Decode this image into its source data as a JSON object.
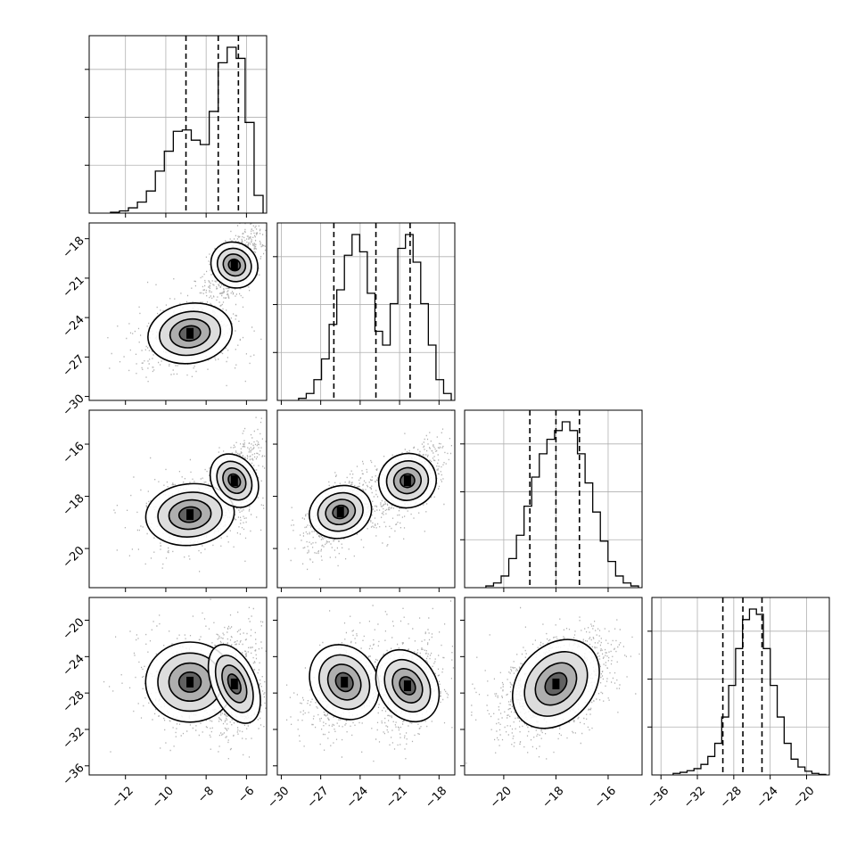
{
  "chart_data": [
    {
      "type": "histogram",
      "panel": "1D marginal, parameter 1",
      "x_ticks": [
        -12,
        -10,
        -8,
        -6
      ],
      "xlim": [
        -13.8,
        -5.0
      ],
      "bins_y": [
        0.2,
        0.5,
        1.2,
        2.5,
        5,
        9.5,
        14,
        18.5,
        18.8,
        16.5,
        15.5,
        23,
        34,
        37.5,
        35,
        20.5,
        4
      ],
      "quantiles": [
        -9.0,
        -7.4,
        -6.4
      ],
      "grid": true
    },
    {
      "type": "histogram",
      "panel": "1D marginal, parameter 2",
      "x_ticks": [
        -30,
        -27,
        -24,
        -21,
        -18
      ],
      "xlim": [
        -30.3,
        -16.8
      ],
      "bins_y": [
        0.3,
        1,
        3,
        6,
        11,
        16,
        21,
        24,
        21.5,
        15.5,
        10,
        8,
        14,
        22,
        24,
        20,
        14,
        8,
        3,
        1
      ],
      "quantiles": [
        -26.0,
        -22.8,
        -20.2
      ],
      "grid": true
    },
    {
      "type": "histogram",
      "panel": "1D marginal, parameter 3",
      "x_ticks": [
        -20,
        -18,
        -16
      ],
      "xlim": [
        -21.5,
        -14.7
      ],
      "bins_y": [
        0.3,
        0.8,
        2,
        5,
        9,
        14,
        19,
        23,
        25.5,
        27,
        28.5,
        27,
        23,
        18,
        13,
        8,
        4.5,
        2,
        0.8,
        0.3
      ],
      "quantiles": [
        -19.0,
        -18.0,
        -17.1
      ],
      "grid": true
    },
    {
      "type": "histogram",
      "panel": "1D marginal, parameter 4",
      "x_ticks": [
        -36,
        -32,
        -28,
        -24,
        -20
      ],
      "xlim": [
        -37,
        -17.5
      ],
      "bins_y": [
        0.3,
        0.5,
        0.8,
        1.2,
        2,
        3.5,
        6,
        11,
        17,
        24,
        29.5,
        31.5,
        30.5,
        24,
        17,
        11,
        6,
        3,
        1.5,
        0.7,
        0.3,
        0.1
      ],
      "quantiles": [
        -29.2,
        -27.0,
        -24.9
      ],
      "grid": true
    },
    {
      "type": "heatmap",
      "panel": "2D parameter 1 vs parameter 2",
      "xlim": [
        -13.8,
        -5.0
      ],
      "ylim": [
        -30.3,
        -16.8
      ],
      "x_ticks": [
        -12,
        -10,
        -8,
        -6
      ],
      "y_ticks": [
        -18,
        -21,
        -24,
        -27,
        -30
      ],
      "modes": [
        {
          "x": -8.8,
          "y": -25.2,
          "sx": 1.05,
          "sy": 1.15,
          "rho": 0.15,
          "w": 0.42
        },
        {
          "x": -6.6,
          "y": -20.0,
          "sx": 0.55,
          "sy": 1.15,
          "rho": 0.6,
          "w": 0.58
        }
      ]
    },
    {
      "type": "heatmap",
      "panel": "2D parameter 1 vs parameter 3",
      "xlim": [
        -13.8,
        -5.0
      ],
      "ylim": [
        -21.5,
        -14.7
      ],
      "x_ticks": [
        -12,
        -10,
        -8,
        -6
      ],
      "y_ticks": [
        -16,
        -18,
        -20
      ],
      "modes": [
        {
          "x": -8.8,
          "y": -18.7,
          "sx": 1.1,
          "sy": 0.6,
          "rho": 0.2,
          "w": 0.42
        },
        {
          "x": -6.6,
          "y": -17.4,
          "sx": 0.55,
          "sy": 0.65,
          "rho": 0.55,
          "w": 0.58
        }
      ]
    },
    {
      "type": "heatmap",
      "panel": "2D parameter 2 vs parameter 3",
      "xlim": [
        -30.3,
        -16.8
      ],
      "ylim": [
        -21.5,
        -14.7
      ],
      "x_ticks": [
        -30,
        -27,
        -24,
        -21,
        -18
      ],
      "y_ticks": [
        -16,
        -18,
        -20
      ],
      "modes": [
        {
          "x": -25.5,
          "y": -18.6,
          "sx": 1.2,
          "sy": 0.62,
          "rho": 0.6,
          "w": 0.45
        },
        {
          "x": -20.4,
          "y": -17.4,
          "sx": 1.1,
          "sy": 0.62,
          "rho": 0.55,
          "w": 0.55
        }
      ]
    },
    {
      "type": "heatmap",
      "panel": "2D parameter 1 vs parameter 4",
      "xlim": [
        -13.8,
        -5.0
      ],
      "ylim": [
        -37,
        -17.5
      ],
      "x_ticks": [
        -12,
        -10,
        -8,
        -6
      ],
      "y_ticks": [
        -20,
        -24,
        -28,
        -32,
        -36
      ],
      "modes": [
        {
          "x": -8.8,
          "y": -26.8,
          "sx": 1.1,
          "sy": 2.2,
          "rho": 0.0,
          "w": 0.42
        },
        {
          "x": -6.6,
          "y": -27.0,
          "sx": 0.55,
          "sy": 2.3,
          "rho": 0.1,
          "w": 0.58
        }
      ]
    },
    {
      "type": "heatmap",
      "panel": "2D parameter 2 vs parameter 4",
      "xlim": [
        -30.3,
        -16.8
      ],
      "ylim": [
        -37,
        -17.5
      ],
      "x_ticks": [
        -30,
        -27,
        -24,
        -21,
        -18
      ],
      "y_ticks": [
        -20,
        -24,
        -28,
        -32,
        -36
      ],
      "modes": [
        {
          "x": -25.2,
          "y": -26.8,
          "sx": 1.25,
          "sy": 2.3,
          "rho": 0.35,
          "w": 0.45
        },
        {
          "x": -20.4,
          "y": -27.2,
          "sx": 1.1,
          "sy": 2.2,
          "rho": 0.3,
          "w": 0.55
        }
      ]
    },
    {
      "type": "heatmap",
      "panel": "2D parameter 3 vs parameter 4",
      "xlim": [
        -21.5,
        -14.7
      ],
      "ylim": [
        -37,
        -17.5
      ],
      "x_ticks": [
        -20,
        -18,
        -16
      ],
      "y_ticks": [
        -20,
        -24,
        -28,
        -32,
        -36
      ],
      "modes": [
        {
          "x": -18.0,
          "y": -27.0,
          "sx": 0.95,
          "sy": 2.3,
          "rho": 0.45,
          "w": 1.0
        }
      ]
    }
  ]
}
